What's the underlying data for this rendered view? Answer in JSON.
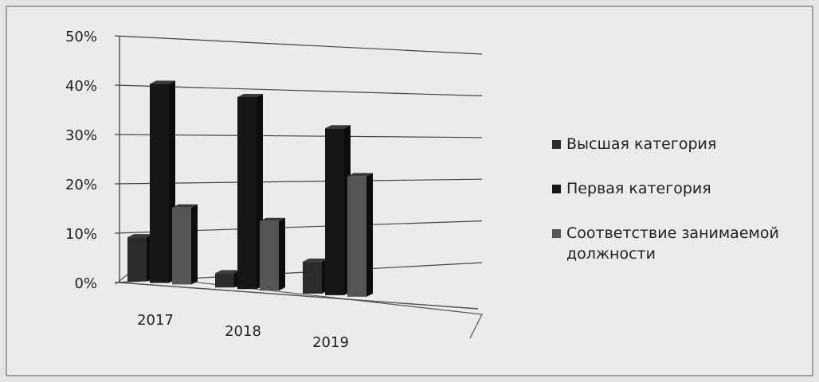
{
  "chart_data": {
    "type": "bar3d",
    "categories": [
      "2017",
      "2018",
      "2019"
    ],
    "series": [
      {
        "name": "Высшая категория",
        "color": "#2b2b2b",
        "values": [
          9,
          3,
          7
        ]
      },
      {
        "name": "Первая категория",
        "color": "#161616",
        "values": [
          41,
          41,
          37
        ]
      },
      {
        "name": "Соответствие занимаемой должности",
        "color": "#555555",
        "values": [
          16,
          15,
          27
        ]
      }
    ],
    "ylim": [
      0,
      50
    ],
    "yticks": [
      {
        "value": 0,
        "label": "0%"
      },
      {
        "value": 10,
        "label": "10%"
      },
      {
        "value": 20,
        "label": "20%"
      },
      {
        "value": 30,
        "label": "30%"
      },
      {
        "value": 40,
        "label": "40%"
      },
      {
        "value": 50,
        "label": "50%"
      }
    ],
    "grid": true,
    "legend": "right"
  }
}
